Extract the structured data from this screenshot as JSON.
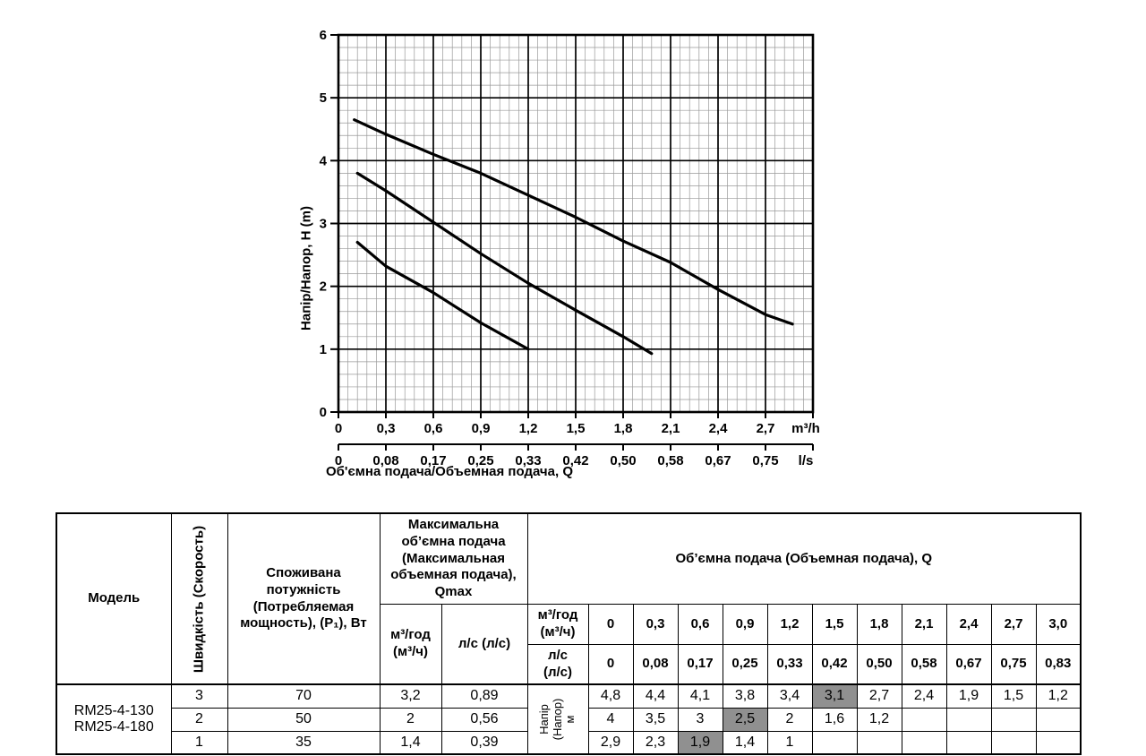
{
  "chart_data": {
    "type": "line",
    "title": "",
    "xlabel": "Об'ємна подача/Объемная подача, Q",
    "ylabel": "Напір/Напор, H (m)",
    "x_unit_primary": "m³/h",
    "x_unit_secondary": "l/s",
    "xlim": [
      0,
      3.0
    ],
    "ylim": [
      0,
      6
    ],
    "x_major_step": 0.3,
    "y_major_step": 1,
    "grid": {
      "on": true,
      "x_minor_per_major": 5,
      "y_minor_per_major": 5,
      "minor_color": "#999999",
      "major_color": "#000000"
    },
    "line_color": "#000000",
    "x_tick_labels": [
      "0",
      "0,3",
      "0,6",
      "0,9",
      "1,2",
      "1,5",
      "1,8",
      "2,1",
      "2,4",
      "2,7"
    ],
    "x2_tick_labels": [
      "0",
      "0,08",
      "0,17",
      "0,25",
      "0,33",
      "0,42",
      "0,50",
      "0,58",
      "0,67",
      "0,75"
    ],
    "y_tick_labels": [
      "0",
      "1",
      "2",
      "3",
      "4",
      "5",
      "6"
    ],
    "legend": "none",
    "series": [
      {
        "name": "speed-3",
        "points": [
          [
            0.1,
            4.65
          ],
          [
            0.3,
            4.42
          ],
          [
            0.6,
            4.1
          ],
          [
            0.9,
            3.8
          ],
          [
            1.2,
            3.45
          ],
          [
            1.5,
            3.1
          ],
          [
            1.8,
            2.72
          ],
          [
            2.1,
            2.38
          ],
          [
            2.4,
            1.95
          ],
          [
            2.7,
            1.55
          ],
          [
            2.87,
            1.4
          ]
        ]
      },
      {
        "name": "speed-2",
        "points": [
          [
            0.12,
            3.8
          ],
          [
            0.3,
            3.52
          ],
          [
            0.6,
            3.02
          ],
          [
            0.9,
            2.52
          ],
          [
            1.2,
            2.05
          ],
          [
            1.5,
            1.62
          ],
          [
            1.8,
            1.2
          ],
          [
            1.98,
            0.93
          ]
        ]
      },
      {
        "name": "speed-1",
        "points": [
          [
            0.12,
            2.7
          ],
          [
            0.3,
            2.32
          ],
          [
            0.6,
            1.9
          ],
          [
            0.9,
            1.42
          ],
          [
            1.2,
            1.0
          ]
        ]
      }
    ]
  },
  "table": {
    "header": {
      "model": "Модель",
      "speed": "Швидкість (Скорость)",
      "power": "Споживана потужність (Потребляемая мощность), (P₁), Вт",
      "qmax": "Максимальна об’ємна подача (Максимальная объемная подача), Qmax",
      "q": "Об’ємна подача (Объемная подача), Q",
      "unit_mh_2l": "м³/год\n(м³/ч)",
      "unit_ls_1l": "л/с (л/с)",
      "unit_ls_2l": "л/с\n(л/с)",
      "head_unit": "Напір (Напор)\nм"
    },
    "q_mh": [
      "0",
      "0,3",
      "0,6",
      "0,9",
      "1,2",
      "1,5",
      "1,8",
      "2,1",
      "2,4",
      "2,7",
      "3,0"
    ],
    "q_ls": [
      "0",
      "0,08",
      "0,17",
      "0,25",
      "0,33",
      "0,42",
      "0,50",
      "0,58",
      "0,67",
      "0,75",
      "0,83"
    ],
    "model": "RM25-4-130\nRM25-4-180",
    "rows": [
      {
        "speed": "3",
        "power": "70",
        "qmax_mh": "3,2",
        "qmax_ls": "0,89",
        "head": [
          "4,8",
          "4,4",
          "4,1",
          "3,8",
          "3,4",
          "3,1",
          "2,7",
          "2,4",
          "1,9",
          "1,5",
          "1,2"
        ],
        "highlight": 5
      },
      {
        "speed": "2",
        "power": "50",
        "qmax_mh": "2",
        "qmax_ls": "0,56",
        "head": [
          "4",
          "3,5",
          "3",
          "2,5",
          "2",
          "1,6",
          "1,2",
          "",
          "",
          "",
          ""
        ],
        "highlight": 3
      },
      {
        "speed": "1",
        "power": "35",
        "qmax_mh": "1,4",
        "qmax_ls": "0,39",
        "head": [
          "2,9",
          "2,3",
          "1,9",
          "1,4",
          "1",
          "",
          "",
          "",
          "",
          "",
          ""
        ],
        "highlight": 2
      }
    ],
    "highlight_color": "#909090"
  }
}
